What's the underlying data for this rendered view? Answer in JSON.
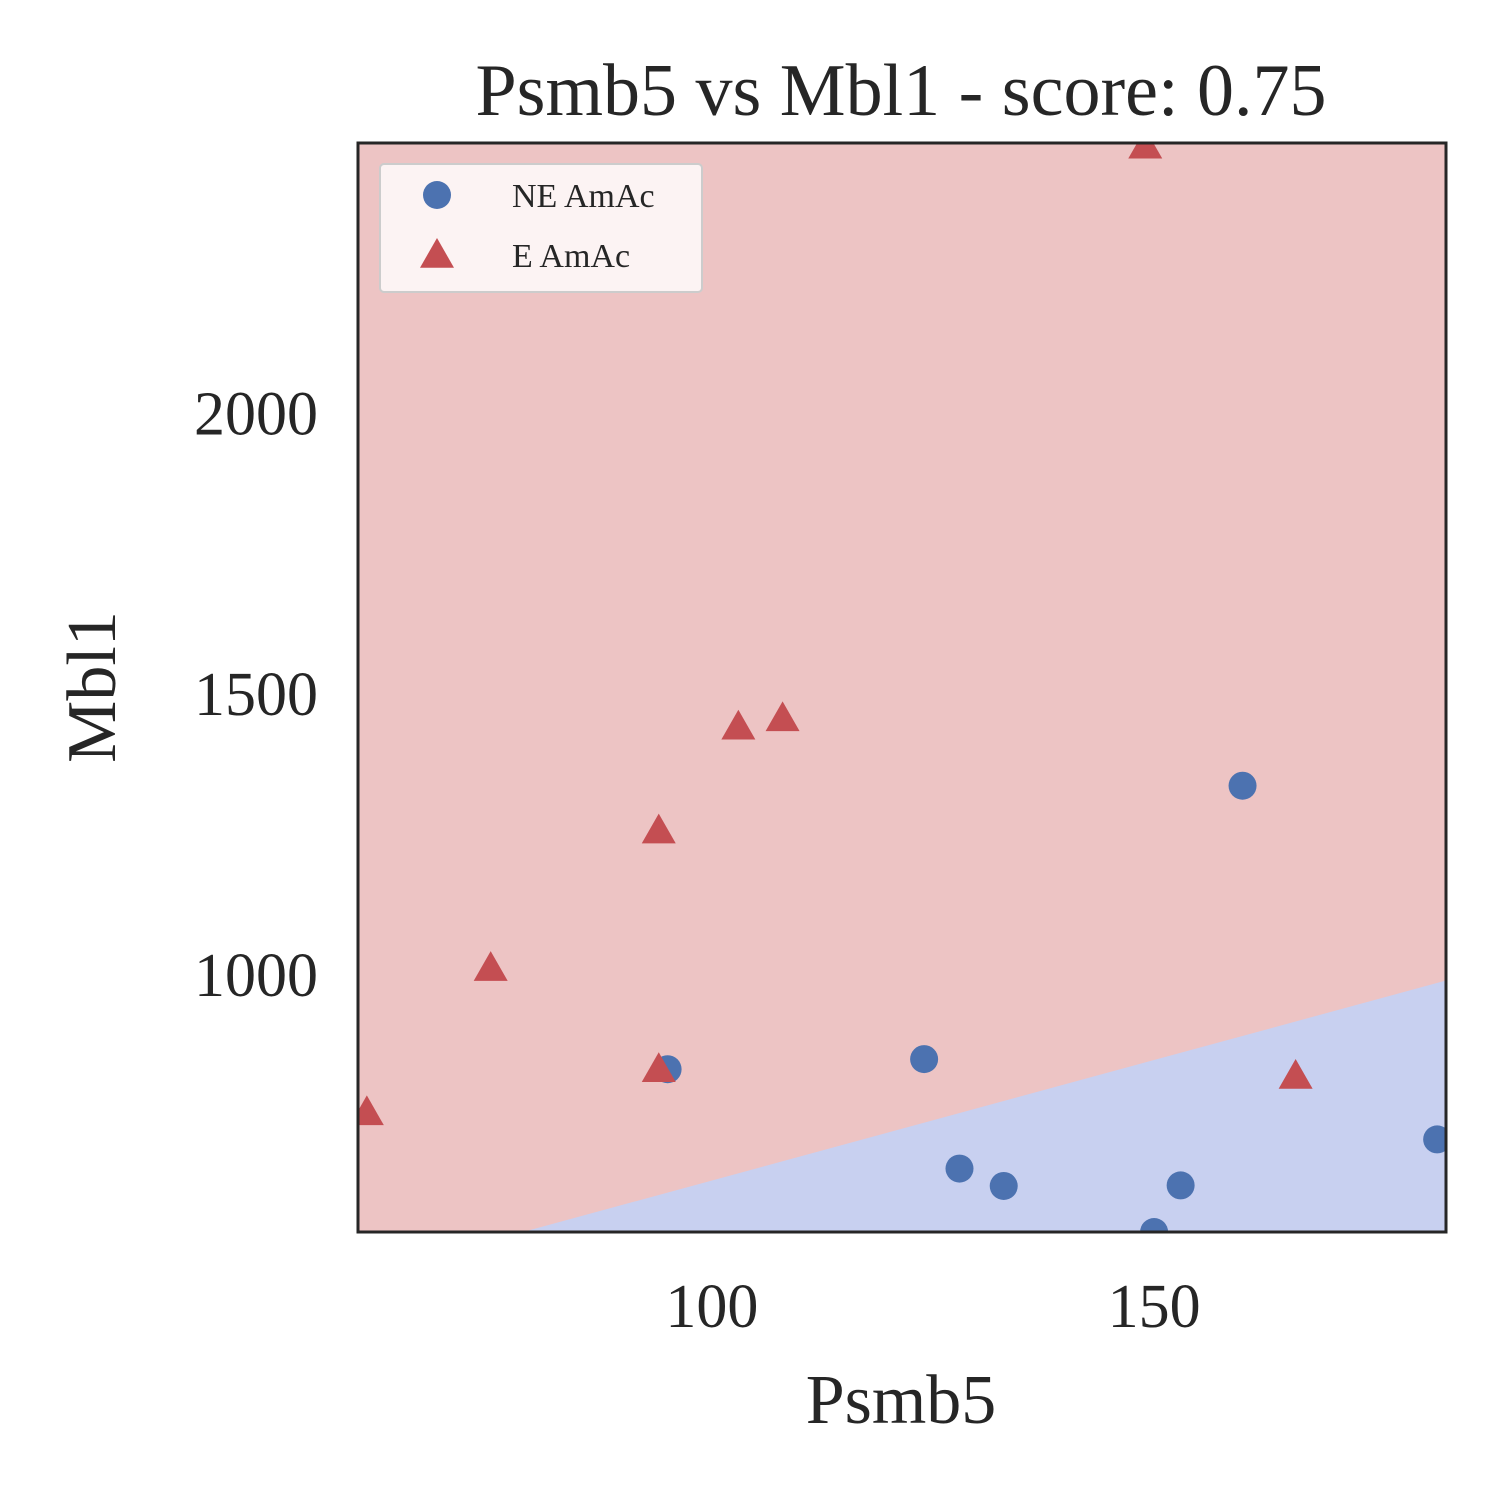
{
  "chart_data": {
    "type": "scatter",
    "title": "Psmb5 vs Mbl1 - score: 0.75",
    "xlabel": "Psmb5",
    "ylabel": "Mbl1",
    "xlim": [
      60,
      183
    ],
    "ylim": [
      540,
      2480
    ],
    "xticks": [
      100,
      150
    ],
    "xtick_labels": [
      "100",
      "150"
    ],
    "yticks": [
      1000,
      1500,
      2000
    ],
    "ytick_labels": [
      "1000",
      "1500",
      "2000"
    ],
    "grid": false,
    "legend_position": "top-left",
    "decision_boundary": {
      "line": [
        [
          60,
          460
        ],
        [
          183,
          988
        ]
      ],
      "above_class": "E AmAc",
      "below_class": "NE AmAc"
    },
    "series": [
      {
        "name": "NE AmAc",
        "marker": "circle",
        "color": "#4c72b0",
        "points": [
          [
            95,
            830
          ],
          [
            124,
            848
          ],
          [
            128,
            653
          ],
          [
            133,
            622
          ],
          [
            150,
            540
          ],
          [
            153,
            623
          ],
          [
            160,
            1335
          ],
          [
            182,
            705
          ]
        ]
      },
      {
        "name": "E AmAc",
        "marker": "triangle",
        "color": "#c44e52",
        "points": [
          [
            61,
            753
          ],
          [
            75,
            1010
          ],
          [
            94,
            830
          ],
          [
            94,
            1255
          ],
          [
            103,
            1440
          ],
          [
            108,
            1455
          ],
          [
            149,
            2475
          ],
          [
            166,
            818
          ]
        ]
      }
    ],
    "region_colors": {
      "E AmAc": "#edc4c4",
      "NE AmAc": "#c8d0f0"
    },
    "axes_edge_color": "#262626"
  }
}
